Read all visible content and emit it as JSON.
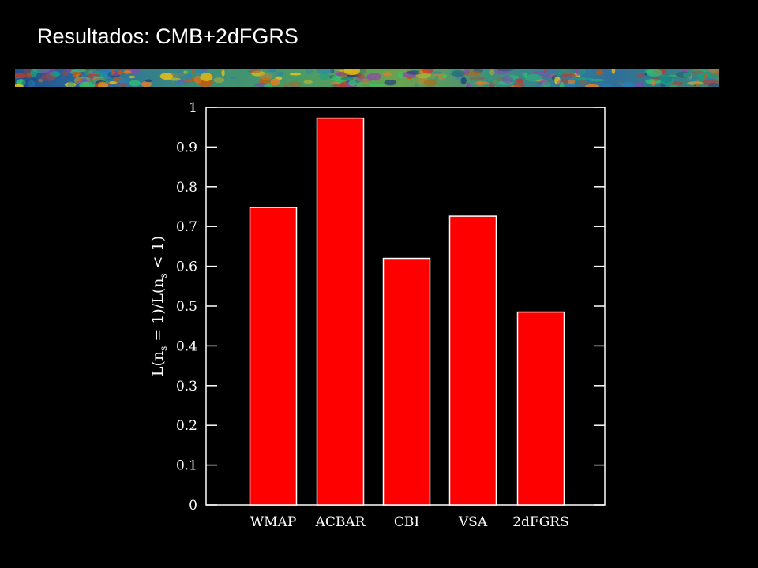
{
  "slide": {
    "title": "Resultados: CMB+2dFGRS"
  },
  "colors": {
    "background": "#000000",
    "bar_fill": "#ff0000",
    "bar_edge": "#ffffff",
    "axis": "#ffffff",
    "text": "#ffffff"
  },
  "chart_data": {
    "type": "bar",
    "categories": [
      "WMAP",
      "ACBAR",
      "CBI",
      "VSA",
      "2dFGRS"
    ],
    "values": [
      0.748,
      0.973,
      0.62,
      0.726,
      0.485
    ],
    "title": "",
    "xlabel": "",
    "ylabel": "L(n_s = 1)/L(n_s < 1)",
    "ylabel_parts": {
      "a": "L(n",
      "b": "s",
      "c": " = 1)/L(n",
      "d": "s",
      "e": " < 1)"
    },
    "ylim": [
      0,
      1
    ],
    "yticks": [
      "0",
      "0.1",
      "0.2",
      "0.3",
      "0.4",
      "0.5",
      "0.6",
      "0.7",
      "0.8",
      "0.9",
      "1"
    ],
    "grid": false,
    "legend": "none"
  }
}
